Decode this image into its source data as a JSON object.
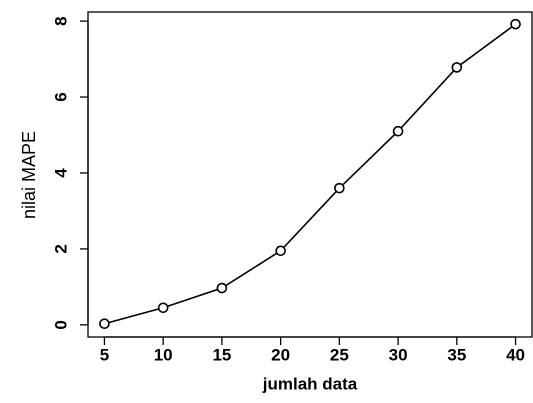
{
  "chart_data": {
    "type": "line",
    "x_label": "jumlah data",
    "y_label": "nilai MAPE",
    "x": [
      5,
      10,
      15,
      20,
      25,
      30,
      35,
      40
    ],
    "values": [
      0.03,
      0.45,
      0.97,
      1.95,
      3.6,
      5.1,
      6.78,
      7.92
    ],
    "color": "#000000",
    "xlim": [
      3.6,
      41.4
    ],
    "xticks": [
      5,
      10,
      15,
      20,
      25,
      30,
      35,
      40
    ],
    "ylim": [
      -0.32,
      8.24
    ],
    "yticks": [
      0,
      2,
      4,
      6,
      8
    ]
  }
}
